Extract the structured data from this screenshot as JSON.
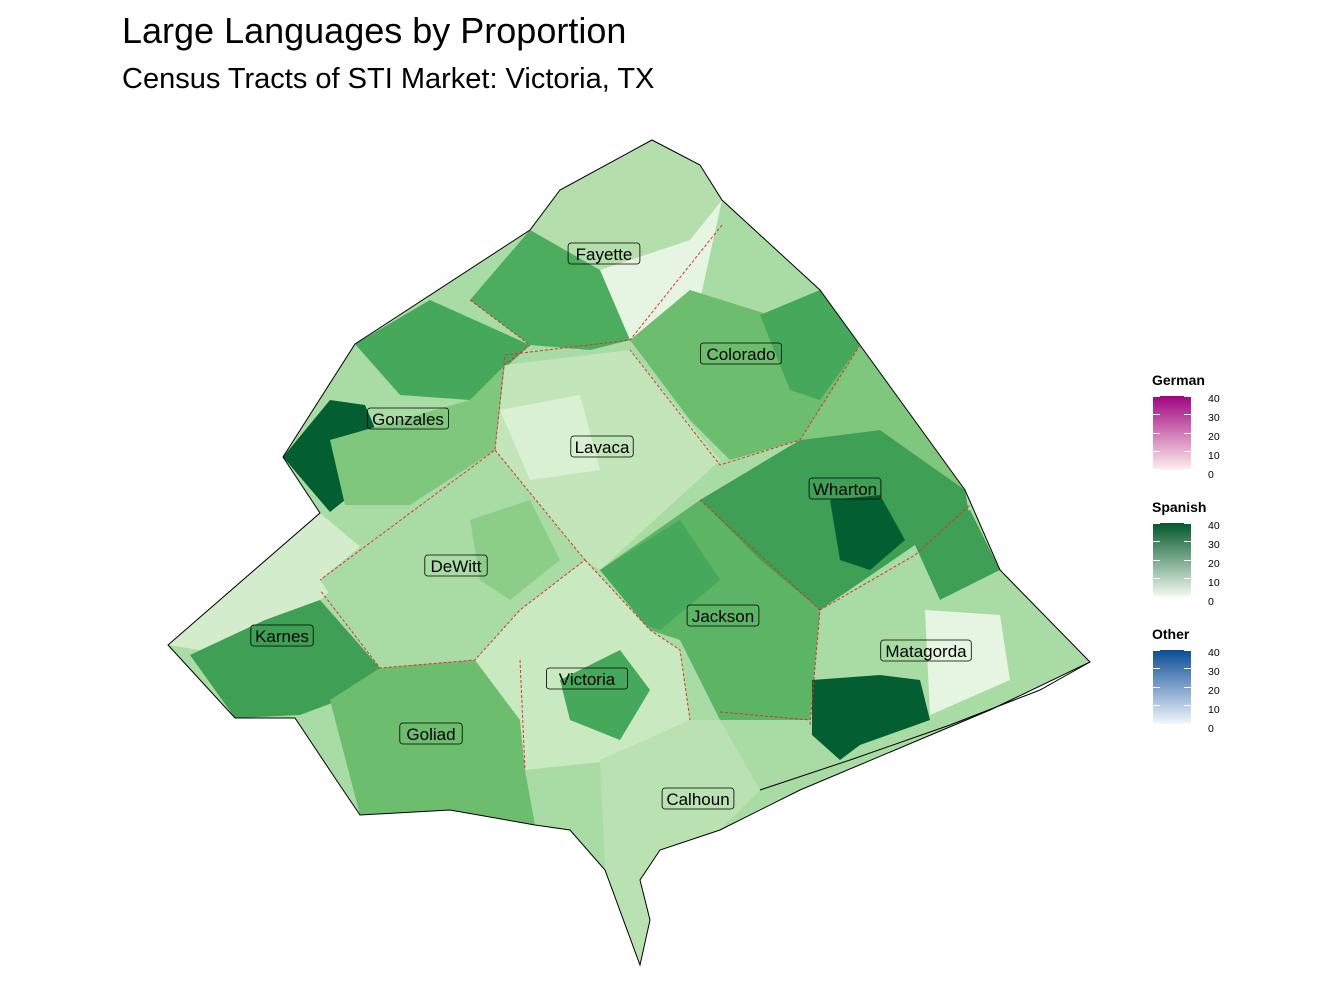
{
  "title": "Large Languages by Proportion",
  "subtitle": "Census Tracts of STI Market: Victoria, TX",
  "counties": [
    {
      "name": "Fayette",
      "spanish_pct": 12,
      "color": "#a9dca4"
    },
    {
      "name": "Colorado",
      "spanish_pct": 18,
      "color": "#7ec77d"
    },
    {
      "name": "Gonzales",
      "spanish_pct": 25,
      "color": "#5ab464"
    },
    {
      "name": "Lavaca",
      "spanish_pct": 8,
      "color": "#c9e9c1"
    },
    {
      "name": "Wharton",
      "spanish_pct": 28,
      "color": "#45a85a"
    },
    {
      "name": "DeWitt",
      "spanish_pct": 15,
      "color": "#9bd495"
    },
    {
      "name": "Karnes",
      "spanish_pct": 30,
      "color": "#3f9f55"
    },
    {
      "name": "Jackson",
      "spanish_pct": 24,
      "color": "#5cb465"
    },
    {
      "name": "Victoria",
      "spanish_pct": 14,
      "color": "#a4d89e"
    },
    {
      "name": "Matagorda",
      "spanish_pct": 12,
      "color": "#b4deab"
    },
    {
      "name": "Goliad",
      "spanish_pct": 22,
      "color": "#6cbd6d"
    },
    {
      "name": "Calhoun",
      "spanish_pct": 10,
      "color": "#b9e1b1"
    }
  ],
  "legends": [
    {
      "title": "German",
      "ticks": [
        "40",
        "30",
        "20",
        "10",
        "0"
      ],
      "color_low": "#fff0ee",
      "color_high": "#a0047f"
    },
    {
      "title": "Spanish",
      "ticks": [
        "40",
        "30",
        "20",
        "10",
        "0"
      ],
      "color_low": "#f4fbf1",
      "color_high": "#02582c"
    },
    {
      "title": "Other",
      "ticks": [
        "40",
        "30",
        "20",
        "10",
        "0"
      ],
      "color_low": "#f2f6fc",
      "color_high": "#0a4d97"
    }
  ]
}
